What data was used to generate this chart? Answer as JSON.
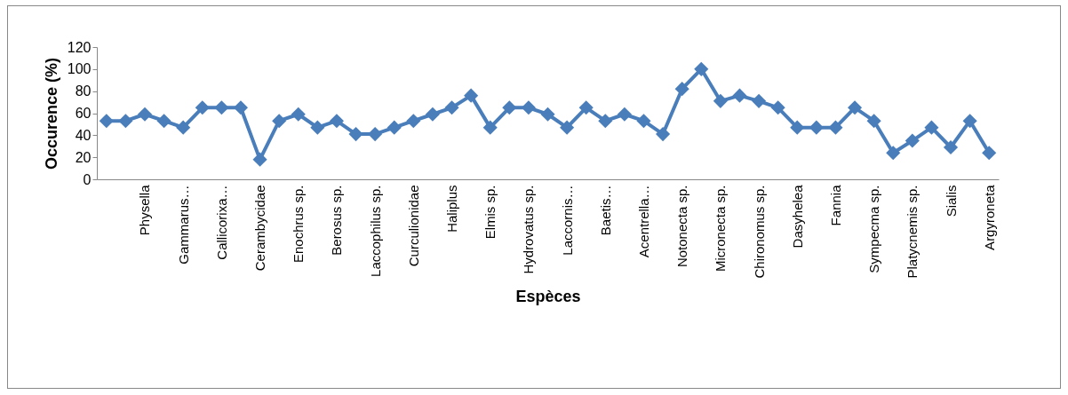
{
  "chart_data": {
    "type": "line",
    "xlabel": "Espèces",
    "ylabel": "Occurence (%)",
    "categories": [
      null,
      null,
      "Physella",
      null,
      "Gammarus…",
      null,
      "Callicorixa…",
      null,
      "Cerambycidae",
      null,
      "Enochrus sp.",
      null,
      "Berosus sp.",
      null,
      "Laccophilus sp.",
      null,
      "Curculionidae",
      null,
      "Haliplus",
      null,
      "Elmis sp.",
      null,
      "Hydrovatus sp.",
      null,
      "Laccornis…",
      null,
      "Baetis…",
      null,
      "Acentrella…",
      null,
      "Notonecta sp.",
      null,
      "Micronecta sp.",
      null,
      "Chironomus sp.",
      null,
      "Dasyhelea",
      null,
      "Fannia",
      null,
      "Sympecma sp.",
      null,
      "Platycnemis sp.",
      null,
      "Sialis",
      null,
      "Argyroneta"
    ],
    "series": [
      {
        "color": "#4a7ebb",
        "values": [
          53,
          53,
          59,
          53,
          47,
          65,
          65,
          65,
          18,
          53,
          59,
          47,
          53,
          41,
          41,
          47,
          53,
          59,
          65,
          76,
          47,
          65,
          65,
          59,
          47,
          65,
          53,
          59,
          53,
          41,
          82,
          100,
          71,
          76,
          71,
          65,
          47,
          47,
          47,
          65,
          53,
          24,
          35,
          47,
          29,
          53,
          24
        ]
      }
    ],
    "ylim": [
      0,
      120
    ],
    "yticks": [
      0,
      20,
      40,
      60,
      80,
      100,
      120
    ],
    "marker": "diamond",
    "line_style": "solid",
    "grid": false,
    "legend": false
  }
}
